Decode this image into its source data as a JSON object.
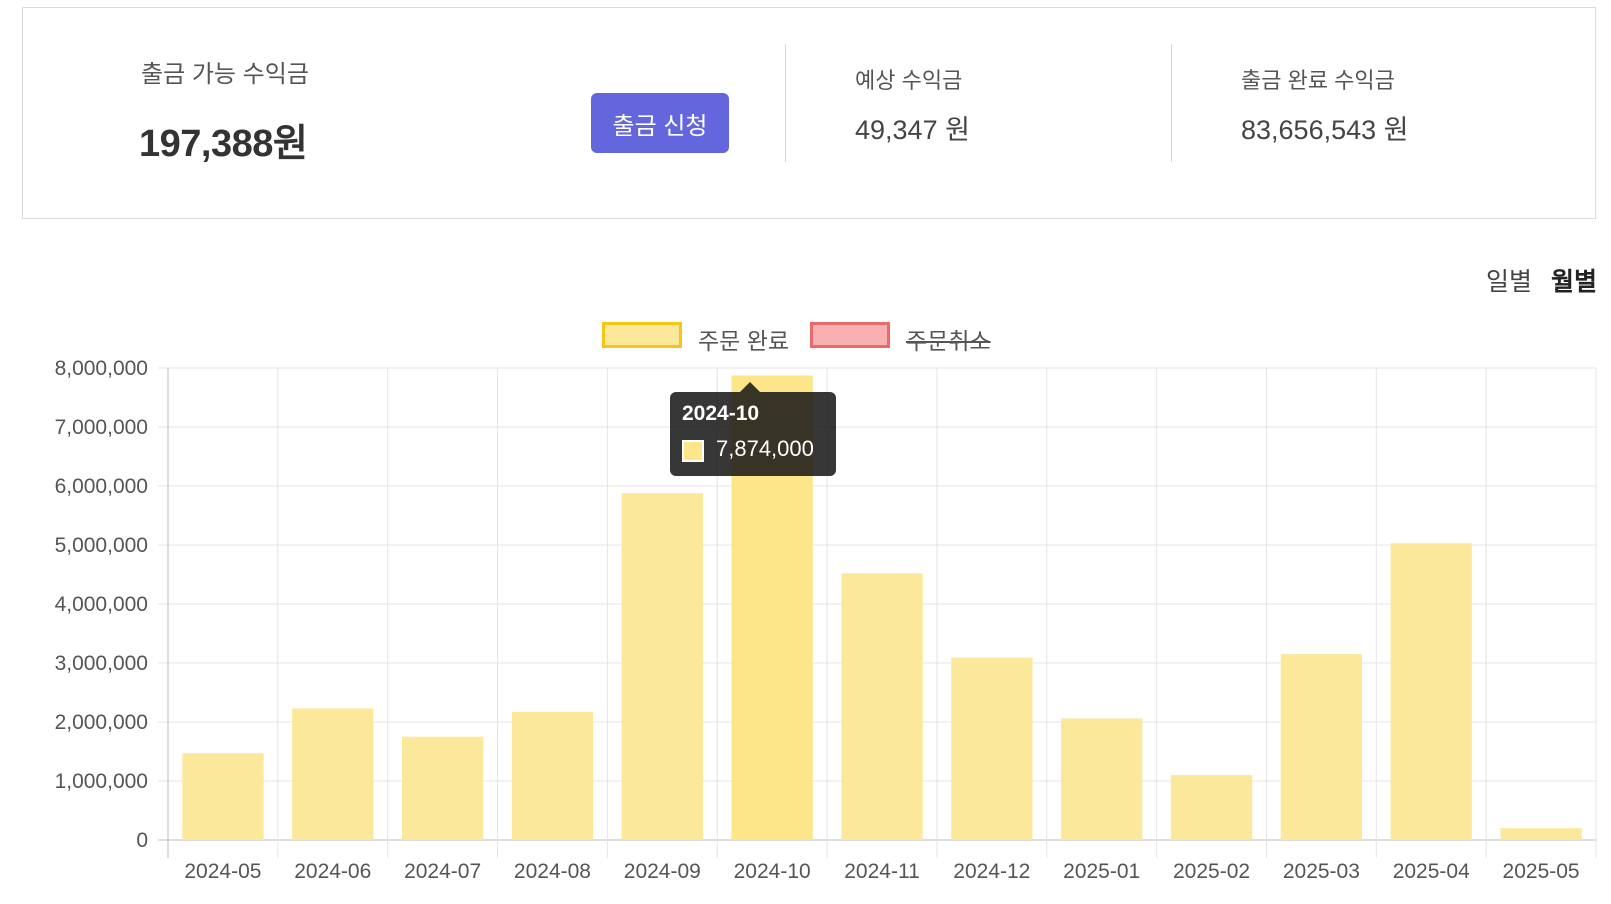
{
  "summary": {
    "available_label": "출금 가능 수익금",
    "available_value": "197,388원",
    "withdraw_button": "출금 신청",
    "expected_label": "예상 수익금",
    "expected_value": "49,347 원",
    "completed_label": "출금 완료 수익금",
    "completed_value": "83,656,543 원"
  },
  "period_toggle": {
    "daily": "일별",
    "monthly": "월별",
    "selected": "monthly"
  },
  "legend": [
    {
      "label": "주문 완료",
      "fill": "#fbe89a",
      "border": "#f5c518",
      "hidden": false
    },
    {
      "label": "주문취소",
      "fill": "#f8b0b0",
      "border": "#e86a6a",
      "hidden": true
    }
  ],
  "tooltip": {
    "title": "2024-10",
    "value": "7,874,000",
    "color": "#fde68a"
  },
  "chart_data": {
    "type": "bar",
    "categories": [
      "2024-05",
      "2024-06",
      "2024-07",
      "2024-08",
      "2024-09",
      "2024-10",
      "2024-11",
      "2024-12",
      "2025-01",
      "2025-02",
      "2025-03",
      "2025-04",
      "2025-05"
    ],
    "series": [
      {
        "name": "주문 완료",
        "values": [
          1470000,
          2230000,
          1750000,
          2170000,
          5880000,
          7874000,
          4520000,
          3090000,
          2060000,
          1100000,
          3150000,
          5030000,
          200000
        ]
      }
    ],
    "y_ticks": [
      "0",
      "1,000,000",
      "2,000,000",
      "3,000,000",
      "4,000,000",
      "5,000,000",
      "6,000,000",
      "7,000,000",
      "8,000,000"
    ],
    "ylim": [
      0,
      8000000
    ],
    "highlight": "2024-10",
    "grid": true,
    "legend_position": "top",
    "colors": {
      "bar": "#fbe89a",
      "bar_active": "#fde68a",
      "grid": "#e5e5e5",
      "axis": "#bbbbbb"
    }
  }
}
